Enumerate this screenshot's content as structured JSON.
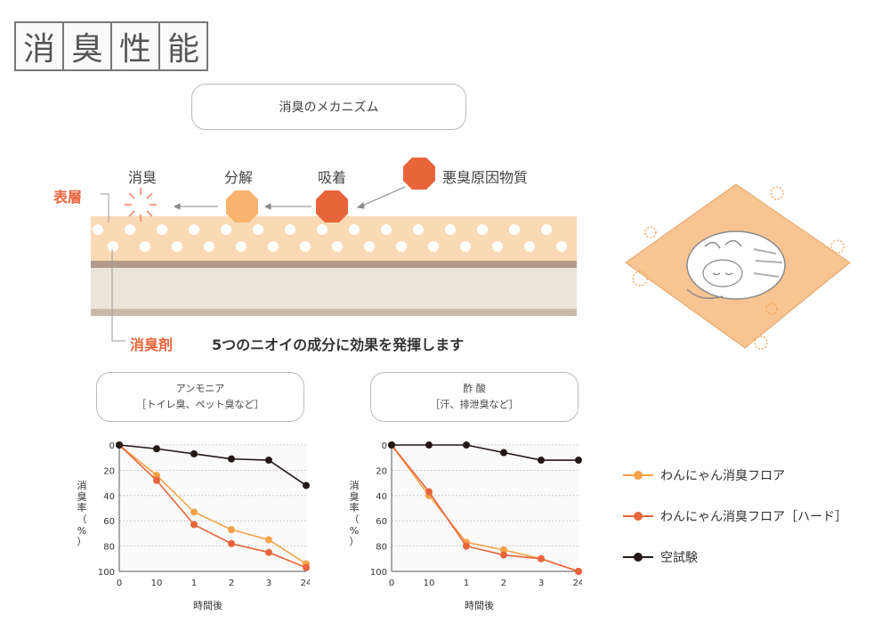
{
  "title": {
    "chars": [
      "消",
      "臭",
      "性",
      "能"
    ]
  },
  "mechanism": {
    "label": "消臭のメカニズム",
    "stages": {
      "deodorize": "消臭",
      "decompose": "分解",
      "adsorb": "吸着",
      "malodor": "悪臭原因物質"
    },
    "surface_label": "表層",
    "agent_label": "消臭剤",
    "description": "5つのニオイの成分に効果を発揮します"
  },
  "colors": {
    "orange_light": "#f5a24a",
    "orange": "#e8643a",
    "black": "#231815",
    "layer": "#fbd9b5",
    "accent": "#e8643a"
  },
  "charts_header": {
    "ammonia": {
      "line1": "アンモニア",
      "line2": "［トイレ臭、ペット臭など］"
    },
    "acetic": {
      "line1": "酢 酸",
      "line2": "［汗、排泄臭など］"
    }
  },
  "axis": {
    "xlabel": "時間後",
    "ylabel_chars": [
      "消",
      "臭",
      "率",
      "（",
      "%",
      "）"
    ]
  },
  "legend": [
    {
      "label": "わんにゃん消臭フロア",
      "color": "#f5a24a"
    },
    {
      "label": "わんにゃん消臭フロア［ハード］",
      "color": "#e8643a"
    },
    {
      "label": "空試験",
      "color": "#231815"
    }
  ],
  "chart_data": [
    {
      "type": "line",
      "categories": [
        "0",
        "10",
        "1",
        "2",
        "3",
        "24"
      ],
      "ylim": [
        100,
        0
      ],
      "yticks": [
        "0",
        "20",
        "40",
        "60",
        "80",
        "100"
      ],
      "series": [
        {
          "name": "わんにゃん消臭フロア",
          "values": [
            0,
            24,
            53,
            67,
            75,
            94
          ]
        },
        {
          "name": "わんにゃん消臭フロア［ハード］",
          "values": [
            0,
            28,
            63,
            78,
            85,
            97
          ]
        },
        {
          "name": "空試験",
          "values": [
            0,
            3,
            7,
            11,
            12,
            32
          ]
        }
      ]
    },
    {
      "type": "line",
      "categories": [
        "0",
        "10",
        "1",
        "2",
        "3",
        "24"
      ],
      "ylim": [
        100,
        0
      ],
      "yticks": [
        "0",
        "20",
        "40",
        "60",
        "80",
        "100"
      ],
      "series": [
        {
          "name": "わんにゃん消臭フロア",
          "values": [
            0,
            40,
            77,
            83,
            90,
            100
          ]
        },
        {
          "name": "わんにゃん消臭フロア［ハード］",
          "values": [
            0,
            37,
            80,
            87,
            90,
            100
          ]
        },
        {
          "name": "空試験",
          "values": [
            0,
            0,
            0,
            6,
            12,
            12
          ]
        }
      ]
    }
  ]
}
